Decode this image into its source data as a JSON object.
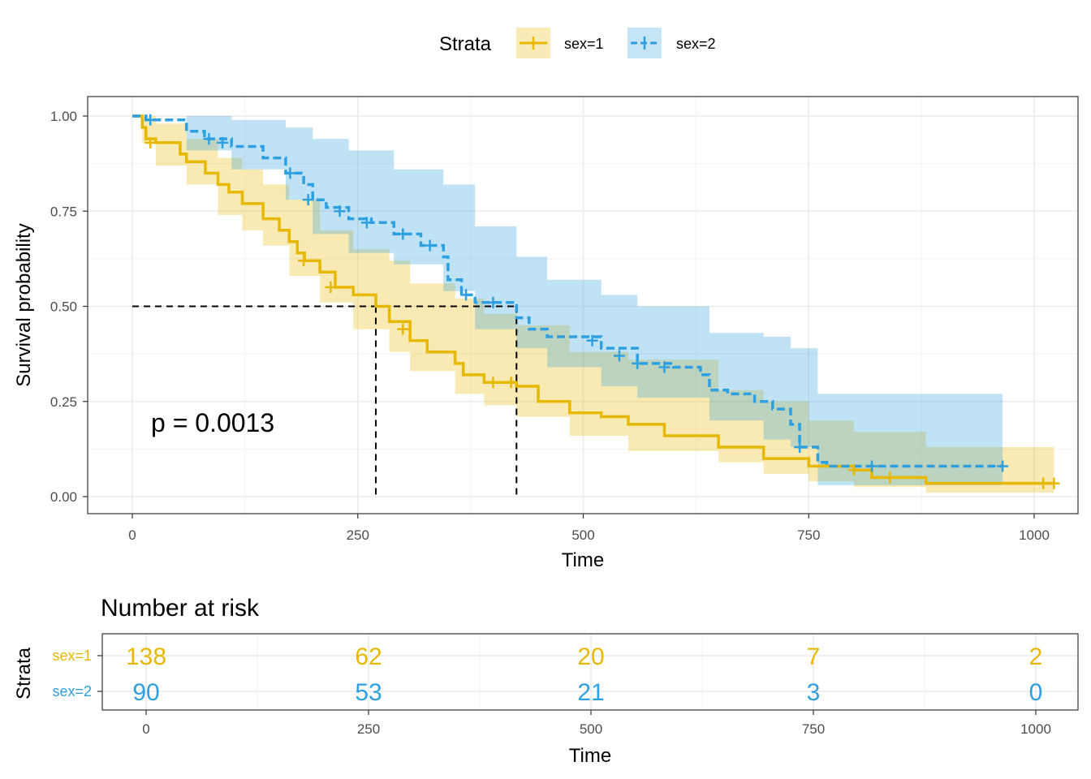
{
  "legend": {
    "title": "Strata",
    "items": [
      {
        "label": "sex=1",
        "color": "#E7B800"
      },
      {
        "label": "sex=2",
        "color": "#2E9FDF"
      }
    ]
  },
  "pvalue": "p = 0.0013",
  "chart_data": {
    "type": "line",
    "subtype": "kaplan-meier",
    "xlabel": "Time",
    "ylabel": "Survival probability",
    "xlim": [
      0,
      1022
    ],
    "ylim": [
      0,
      1
    ],
    "x_ticks": [
      0,
      250,
      500,
      750,
      1000
    ],
    "y_ticks": [
      "0.00",
      "0.25",
      "0.50",
      "0.75",
      "1.00"
    ],
    "grid": true,
    "legend_position": "top",
    "median_survival": [
      {
        "series": "sex=1",
        "time": 270
      },
      {
        "series": "sex=2",
        "time": 426
      }
    ],
    "series": [
      {
        "name": "sex=1",
        "color": "#E7B800",
        "line_style": "solid",
        "steps": [
          [
            0,
            1.0
          ],
          [
            11,
            0.97
          ],
          [
            15,
            0.94
          ],
          [
            26,
            0.93
          ],
          [
            53,
            0.9
          ],
          [
            60,
            0.88
          ],
          [
            81,
            0.85
          ],
          [
            95,
            0.82
          ],
          [
            107,
            0.8
          ],
          [
            122,
            0.77
          ],
          [
            145,
            0.73
          ],
          [
            163,
            0.7
          ],
          [
            174,
            0.67
          ],
          [
            183,
            0.64
          ],
          [
            191,
            0.62
          ],
          [
            208,
            0.59
          ],
          [
            225,
            0.55
          ],
          [
            245,
            0.53
          ],
          [
            270,
            0.5
          ],
          [
            285,
            0.46
          ],
          [
            308,
            0.41
          ],
          [
            327,
            0.38
          ],
          [
            358,
            0.35
          ],
          [
            367,
            0.32
          ],
          [
            390,
            0.3
          ],
          [
            426,
            0.29
          ],
          [
            450,
            0.25
          ],
          [
            485,
            0.22
          ],
          [
            520,
            0.21
          ],
          [
            550,
            0.19
          ],
          [
            590,
            0.16
          ],
          [
            650,
            0.13
          ],
          [
            700,
            0.1
          ],
          [
            750,
            0.08
          ],
          [
            800,
            0.07
          ],
          [
            820,
            0.05
          ],
          [
            880,
            0.035
          ],
          [
            1022,
            0.035
          ]
        ],
        "censored": [
          [
            20,
            0.93
          ],
          [
            190,
            0.62
          ],
          [
            220,
            0.55
          ],
          [
            300,
            0.44
          ],
          [
            400,
            0.3
          ],
          [
            420,
            0.3
          ],
          [
            800,
            0.07
          ],
          [
            840,
            0.05
          ],
          [
            1010,
            0.035
          ],
          [
            1022,
            0.035
          ]
        ],
        "ci_upper": [
          [
            0,
            1.0
          ],
          [
            11,
            1.0
          ],
          [
            26,
            0.98
          ],
          [
            60,
            0.94
          ],
          [
            95,
            0.89
          ],
          [
            122,
            0.86
          ],
          [
            145,
            0.82
          ],
          [
            174,
            0.78
          ],
          [
            208,
            0.7
          ],
          [
            245,
            0.65
          ],
          [
            285,
            0.62
          ],
          [
            308,
            0.56
          ],
          [
            358,
            0.52
          ],
          [
            390,
            0.48
          ],
          [
            426,
            0.45
          ],
          [
            485,
            0.38
          ],
          [
            550,
            0.36
          ],
          [
            650,
            0.28
          ],
          [
            700,
            0.25
          ],
          [
            750,
            0.2
          ],
          [
            800,
            0.17
          ],
          [
            880,
            0.13
          ],
          [
            1022,
            0.12
          ]
        ],
        "ci_lower": [
          [
            0,
            1.0
          ],
          [
            11,
            0.93
          ],
          [
            26,
            0.87
          ],
          [
            60,
            0.82
          ],
          [
            95,
            0.74
          ],
          [
            122,
            0.7
          ],
          [
            145,
            0.66
          ],
          [
            174,
            0.58
          ],
          [
            208,
            0.51
          ],
          [
            245,
            0.44
          ],
          [
            285,
            0.38
          ],
          [
            308,
            0.33
          ],
          [
            358,
            0.27
          ],
          [
            390,
            0.24
          ],
          [
            426,
            0.21
          ],
          [
            485,
            0.16
          ],
          [
            550,
            0.12
          ],
          [
            650,
            0.09
          ],
          [
            700,
            0.06
          ],
          [
            750,
            0.04
          ],
          [
            800,
            0.025
          ],
          [
            880,
            0.01
          ],
          [
            1022,
            0.01
          ]
        ]
      },
      {
        "name": "sex=2",
        "color": "#2E9FDF",
        "line_style": "dashed",
        "steps": [
          [
            0,
            1.0
          ],
          [
            15,
            0.99
          ],
          [
            60,
            0.96
          ],
          [
            80,
            0.94
          ],
          [
            110,
            0.92
          ],
          [
            145,
            0.89
          ],
          [
            170,
            0.85
          ],
          [
            190,
            0.82
          ],
          [
            200,
            0.78
          ],
          [
            215,
            0.76
          ],
          [
            240,
            0.73
          ],
          [
            265,
            0.72
          ],
          [
            290,
            0.69
          ],
          [
            320,
            0.66
          ],
          [
            345,
            0.63
          ],
          [
            350,
            0.57
          ],
          [
            365,
            0.53
          ],
          [
            380,
            0.51
          ],
          [
            426,
            0.47
          ],
          [
            440,
            0.44
          ],
          [
            460,
            0.42
          ],
          [
            520,
            0.39
          ],
          [
            560,
            0.35
          ],
          [
            600,
            0.34
          ],
          [
            630,
            0.32
          ],
          [
            640,
            0.28
          ],
          [
            660,
            0.27
          ],
          [
            690,
            0.25
          ],
          [
            710,
            0.23
          ],
          [
            730,
            0.19
          ],
          [
            740,
            0.13
          ],
          [
            760,
            0.09
          ],
          [
            770,
            0.08
          ],
          [
            965,
            0.08
          ]
        ],
        "censored": [
          [
            20,
            0.99
          ],
          [
            85,
            0.94
          ],
          [
            100,
            0.93
          ],
          [
            175,
            0.85
          ],
          [
            195,
            0.78
          ],
          [
            230,
            0.75
          ],
          [
            260,
            0.72
          ],
          [
            300,
            0.69
          ],
          [
            330,
            0.66
          ],
          [
            370,
            0.53
          ],
          [
            400,
            0.51
          ],
          [
            510,
            0.41
          ],
          [
            540,
            0.37
          ],
          [
            560,
            0.35
          ],
          [
            590,
            0.34
          ],
          [
            740,
            0.13
          ],
          [
            820,
            0.08
          ],
          [
            965,
            0.08
          ]
        ],
        "ci_upper": [
          [
            0,
            1.0
          ],
          [
            60,
            1.0
          ],
          [
            110,
            0.99
          ],
          [
            170,
            0.97
          ],
          [
            200,
            0.94
          ],
          [
            240,
            0.91
          ],
          [
            290,
            0.86
          ],
          [
            345,
            0.82
          ],
          [
            380,
            0.71
          ],
          [
            426,
            0.63
          ],
          [
            460,
            0.57
          ],
          [
            520,
            0.53
          ],
          [
            560,
            0.5
          ],
          [
            640,
            0.43
          ],
          [
            700,
            0.42
          ],
          [
            730,
            0.39
          ],
          [
            760,
            0.27
          ],
          [
            965,
            0.27
          ]
        ],
        "ci_lower": [
          [
            0,
            1.0
          ],
          [
            60,
            0.91
          ],
          [
            110,
            0.86
          ],
          [
            170,
            0.78
          ],
          [
            200,
            0.69
          ],
          [
            240,
            0.64
          ],
          [
            290,
            0.61
          ],
          [
            345,
            0.54
          ],
          [
            380,
            0.44
          ],
          [
            426,
            0.39
          ],
          [
            460,
            0.34
          ],
          [
            520,
            0.29
          ],
          [
            560,
            0.26
          ],
          [
            640,
            0.2
          ],
          [
            700,
            0.15
          ],
          [
            730,
            0.13
          ],
          [
            760,
            0.03
          ],
          [
            965,
            0.03
          ]
        ]
      }
    ]
  },
  "risk_table": {
    "title": "Number at risk",
    "ylabel": "Strata",
    "xlabel": "Time",
    "time_points": [
      0,
      250,
      500,
      750,
      1000
    ],
    "rows": [
      {
        "label": "sex=1",
        "color": "#E7B800",
        "values": [
          "138",
          "62",
          "20",
          "7",
          "2"
        ]
      },
      {
        "label": "sex=2",
        "color": "#2E9FDF",
        "values": [
          "90",
          "53",
          "21",
          "3",
          "0"
        ]
      }
    ]
  }
}
